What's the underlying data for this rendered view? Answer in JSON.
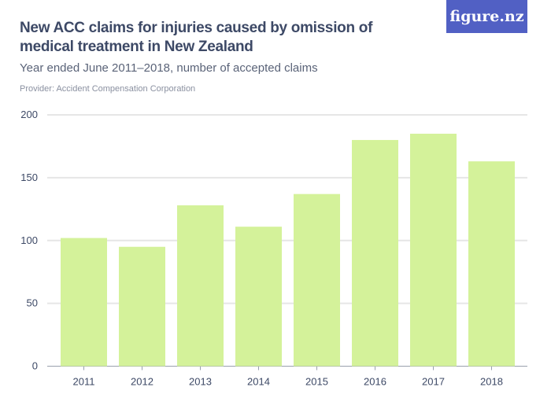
{
  "header": {
    "title": "New ACC claims for injuries caused by omission of medical treatment in New Zealand",
    "subtitle": "Year ended June 2011–2018, number of accepted claims",
    "provider": "Provider: Accident Compensation Corporation",
    "logo": "figure.nz"
  },
  "chart_data": {
    "type": "bar",
    "title": "New ACC claims for injuries caused by omission of medical treatment in New Zealand",
    "subtitle": "Year ended June 2011–2018, number of accepted claims",
    "categories": [
      "2011",
      "2012",
      "2013",
      "2014",
      "2015",
      "2016",
      "2017",
      "2018"
    ],
    "values": [
      102,
      95,
      128,
      111,
      137,
      180,
      185,
      163
    ],
    "xlabel": "",
    "ylabel": "",
    "ylim": [
      0,
      200
    ],
    "yticks": [
      0,
      50,
      100,
      150,
      200
    ],
    "grid": true,
    "bar_color": "#d4f29a"
  }
}
